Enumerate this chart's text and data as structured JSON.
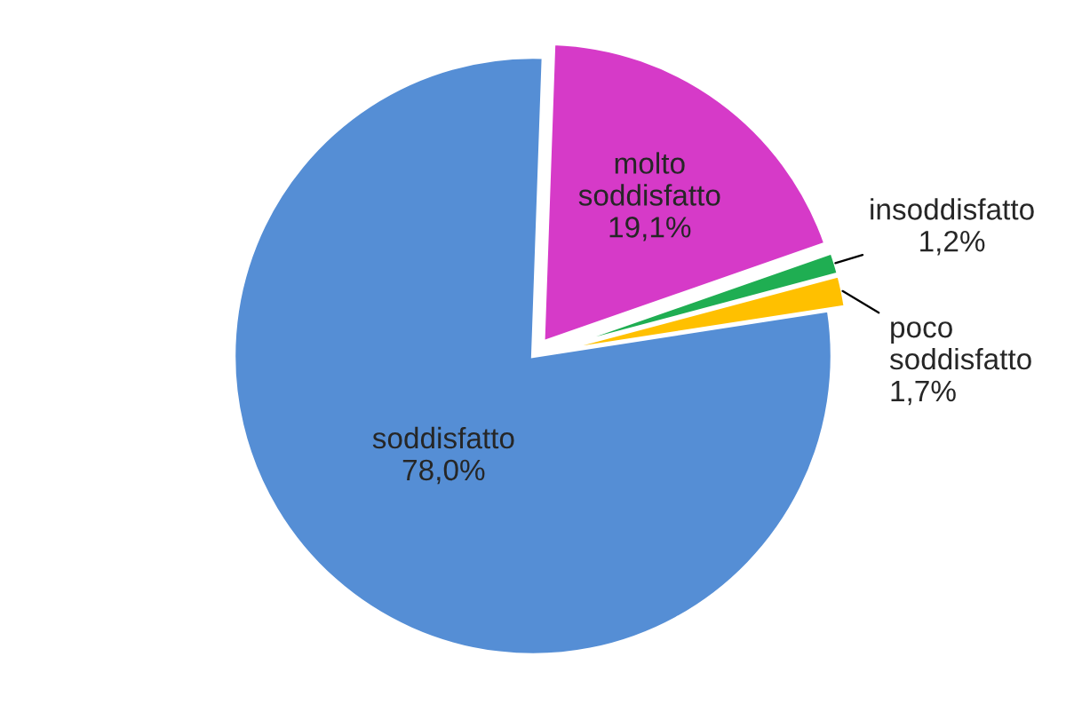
{
  "chart_data": {
    "type": "pie",
    "categories": [
      "molto\nsoddisfatto",
      "insoddisfatto",
      "poco\nsoddisfatto",
      "soddisfatto"
    ],
    "values": [
      19.1,
      1.2,
      1.7,
      78.0
    ],
    "value_labels": [
      "19,1%",
      "1,2%",
      "1,7%",
      "78,0%"
    ],
    "colors": [
      "#d63ac8",
      "#1fae52",
      "#ffc000",
      "#558ed5"
    ],
    "legend": false
  }
}
